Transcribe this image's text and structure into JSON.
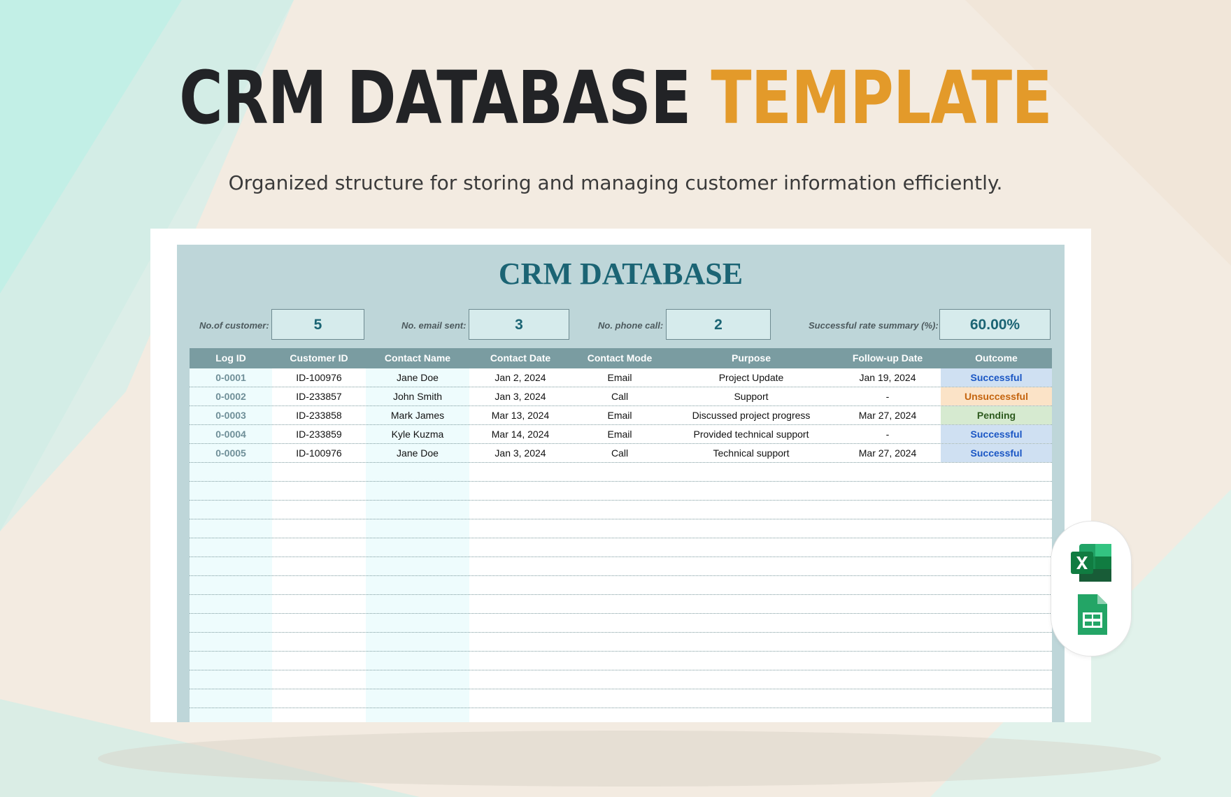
{
  "hero": {
    "title_main": "CRM DATABASE",
    "title_accent": "TEMPLATE",
    "subtitle": "Organized structure for storing and managing customer information efficiently."
  },
  "sheet": {
    "title": "CRM DATABASE",
    "stats": [
      {
        "label": "No.of customer:",
        "value": "5"
      },
      {
        "label": "No. email sent:",
        "value": "3"
      },
      {
        "label": "No. phone call:",
        "value": "2"
      },
      {
        "label": "Successful rate summary (%):",
        "value": "60.00%"
      }
    ],
    "columns": [
      "Log ID",
      "Customer ID",
      "Contact Name",
      "Contact Date",
      "Contact Mode",
      "Purpose",
      "Follow-up Date",
      "Outcome"
    ],
    "rows": [
      {
        "log_id": "0-0001",
        "customer_id": "ID-100976",
        "name": "Jane Doe",
        "date": "Jan 2, 2024",
        "mode": "Email",
        "purpose": "Project Update",
        "followup": "Jan 19, 2024",
        "outcome": "Successful",
        "status": "success"
      },
      {
        "log_id": "0-0002",
        "customer_id": "ID-233857",
        "name": "John Smith",
        "date": "Jan 3, 2024",
        "mode": "Call",
        "purpose": "Support",
        "followup": "-",
        "outcome": "Unsuccessful",
        "status": "fail"
      },
      {
        "log_id": "0-0003",
        "customer_id": "ID-233858",
        "name": "Mark James",
        "date": "Mar 13, 2024",
        "mode": "Email",
        "purpose": "Discussed project progress",
        "followup": "Mar 27, 2024",
        "outcome": "Pending",
        "status": "pending"
      },
      {
        "log_id": "0-0004",
        "customer_id": "ID-233859",
        "name": "Kyle Kuzma",
        "date": "Mar 14, 2024",
        "mode": "Email",
        "purpose": "Provided technical support",
        "followup": "-",
        "outcome": "Successful",
        "status": "success"
      },
      {
        "log_id": "0-0005",
        "customer_id": "ID-100976",
        "name": "Jane Doe",
        "date": "Jan 3, 2024",
        "mode": "Call",
        "purpose": "Technical support",
        "followup": "Mar 27, 2024",
        "outcome": "Successful",
        "status": "success"
      }
    ],
    "empty_rows": 14
  },
  "status_colors": {
    "success": {
      "bg": "#cfe0f2",
      "fg": "#1a56c4"
    },
    "fail": {
      "bg": "#fbe3c7",
      "fg": "#c4640e"
    },
    "pending": {
      "bg": "#d6ead0",
      "fg": "#2d5a1e"
    }
  },
  "apps": [
    {
      "icon": "excel-icon"
    },
    {
      "icon": "google-sheets-icon"
    }
  ],
  "colors": {
    "accent": "#e39a2a",
    "title_dark": "#222326",
    "sheet_bg": "#bed6d9",
    "header_bg": "#7a9ca1",
    "sheet_title": "#1b6474"
  }
}
